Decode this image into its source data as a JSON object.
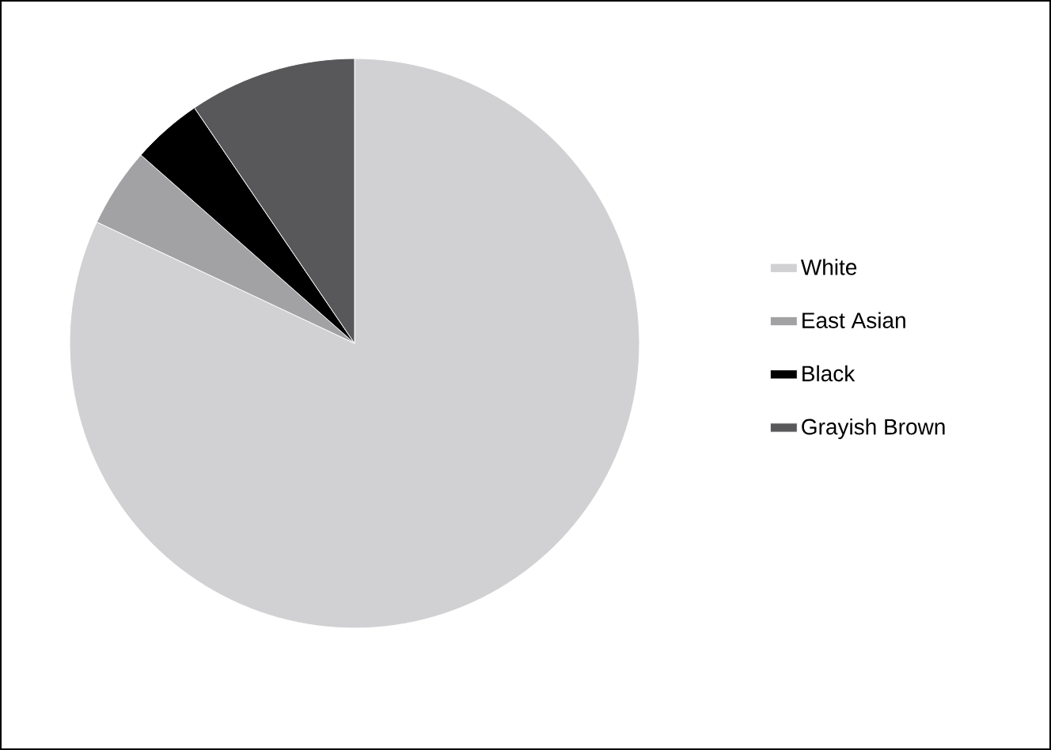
{
  "chart_data": {
    "type": "pie",
    "categories": [
      "White",
      "East Asian",
      "Black",
      "Grayish Brown"
    ],
    "values": [
      82,
      4.5,
      4,
      9.5
    ],
    "colors": [
      "#d1d1d3",
      "#a2a2a4",
      "#000000",
      "#58585a"
    ],
    "legend": "right"
  }
}
